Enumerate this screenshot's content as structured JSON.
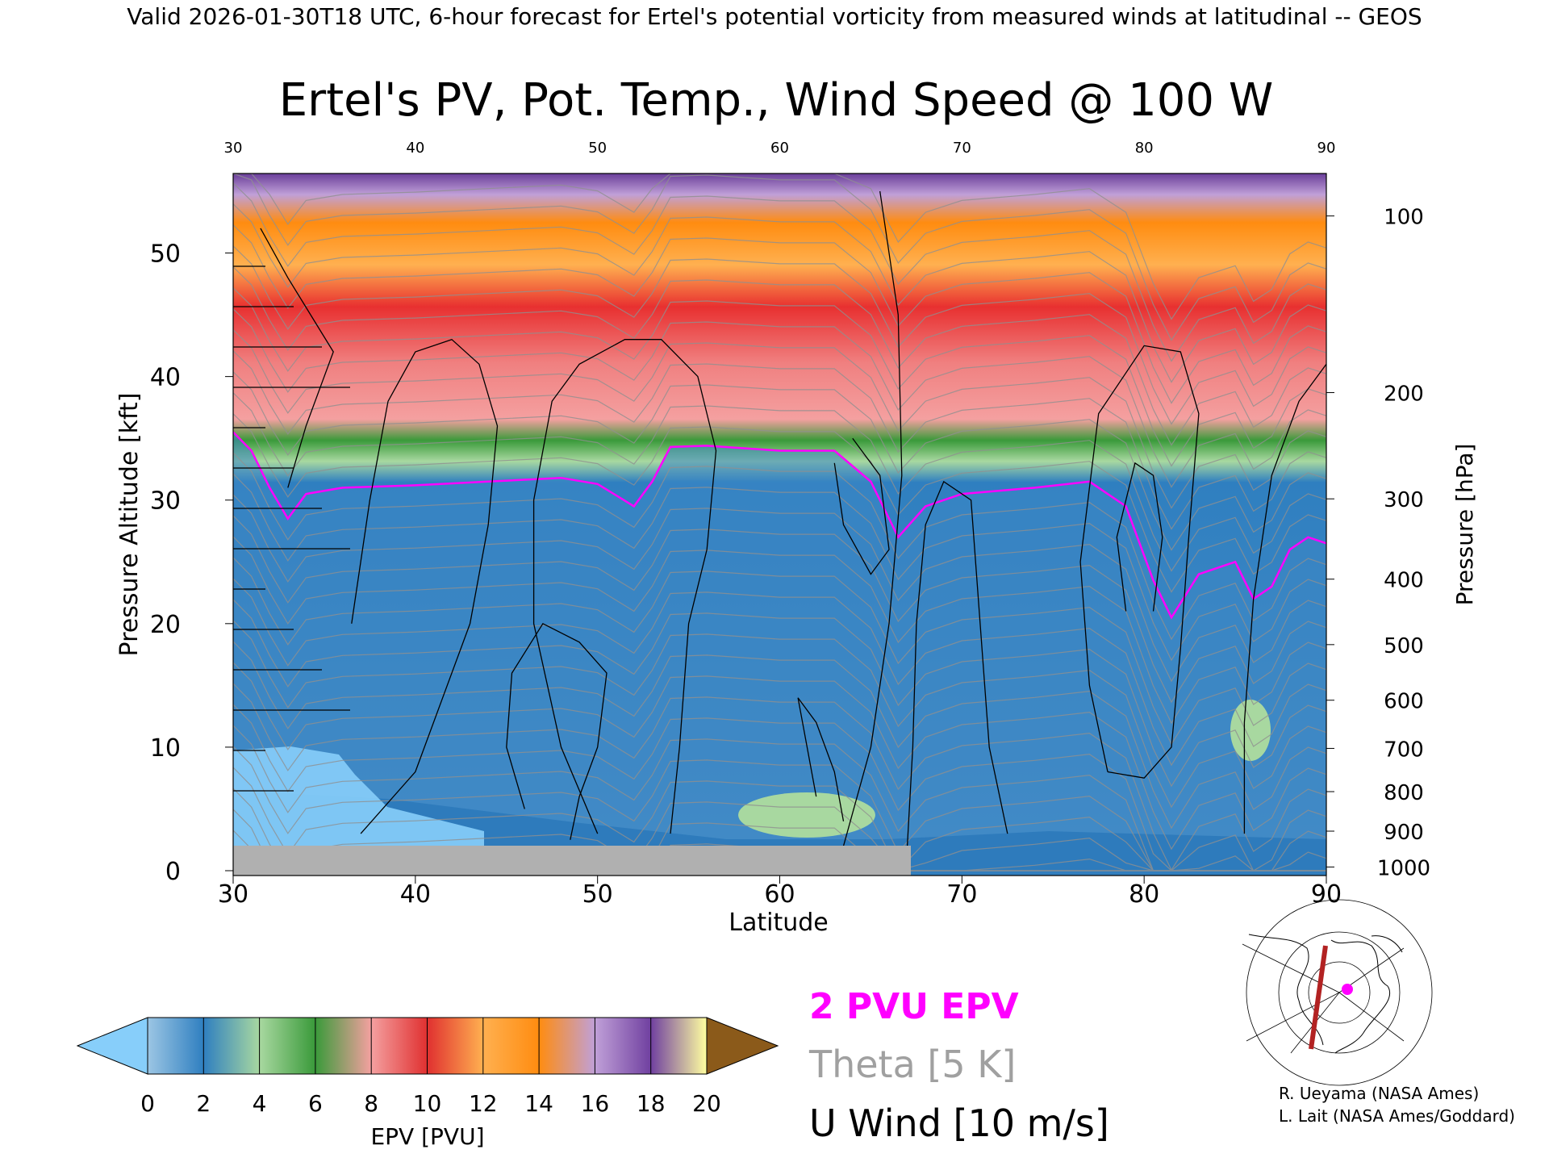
{
  "header": "Valid 2026-01-30T18 UTC, 6-hour forecast for Ertel's potential vorticity from measured winds at latitudinal -- GEOS",
  "chart_data": {
    "type": "heatmap",
    "title": "Ertel's PV, Pot. Temp., Wind Speed @ 100 W",
    "xlabel": "Latitude",
    "ylabel": "Pressure Altitude [kft]",
    "ylabel_right": "Pressure [hPa]",
    "xlim": [
      30,
      90
    ],
    "ylim": [
      0,
      55
    ],
    "x_ticks": [
      "30",
      "40",
      "50",
      "60",
      "70",
      "80",
      "90"
    ],
    "x_ticks_top": [
      "30",
      "40",
      "50",
      "60",
      "70",
      "80",
      "90"
    ],
    "y_ticks": [
      "0",
      "10",
      "20",
      "30",
      "40",
      "50"
    ],
    "pressure_ticks": [
      {
        "label": "100",
        "kft": 53
      },
      {
        "label": "200",
        "kft": 38.7
      },
      {
        "label": "300",
        "kft": 30.1
      },
      {
        "label": "400",
        "kft": 23.6
      },
      {
        "label": "500",
        "kft": 18.3
      },
      {
        "label": "600",
        "kft": 13.8
      },
      {
        "label": "700",
        "kft": 9.9
      },
      {
        "label": "800",
        "kft": 6.4
      },
      {
        "label": "900",
        "kft": 3.2
      },
      {
        "label": "1000",
        "kft": 0.3
      }
    ],
    "tropopause_2pvu": [
      {
        "lat": 30,
        "kft": 35.5
      },
      {
        "lat": 31,
        "kft": 34
      },
      {
        "lat": 32,
        "kft": 31
      },
      {
        "lat": 33,
        "kft": 28.5
      },
      {
        "lat": 34,
        "kft": 30.5
      },
      {
        "lat": 36,
        "kft": 31
      },
      {
        "lat": 40,
        "kft": 31.2
      },
      {
        "lat": 44,
        "kft": 31.5
      },
      {
        "lat": 48,
        "kft": 31.8
      },
      {
        "lat": 50,
        "kft": 31.3
      },
      {
        "lat": 52,
        "kft": 29.5
      },
      {
        "lat": 53,
        "kft": 31.5
      },
      {
        "lat": 54,
        "kft": 34.3
      },
      {
        "lat": 56,
        "kft": 34.4
      },
      {
        "lat": 60,
        "kft": 34
      },
      {
        "lat": 63,
        "kft": 34
      },
      {
        "lat": 65,
        "kft": 31.5
      },
      {
        "lat": 66.5,
        "kft": 27
      },
      {
        "lat": 68,
        "kft": 29.5
      },
      {
        "lat": 70,
        "kft": 30.5
      },
      {
        "lat": 74,
        "kft": 31
      },
      {
        "lat": 77,
        "kft": 31.5
      },
      {
        "lat": 79,
        "kft": 29.5
      },
      {
        "lat": 80.5,
        "kft": 23.5
      },
      {
        "lat": 81.5,
        "kft": 20.5
      },
      {
        "lat": 83,
        "kft": 24
      },
      {
        "lat": 85,
        "kft": 25
      },
      {
        "lat": 86,
        "kft": 22
      },
      {
        "lat": 87,
        "kft": 23
      },
      {
        "lat": 88,
        "kft": 26
      },
      {
        "lat": 89,
        "kft": 27
      },
      {
        "lat": 90,
        "kft": 26.5
      }
    ],
    "wind_10ms_contours": [
      [
        {
          "lat": 31.5,
          "kft": 52
        },
        {
          "lat": 33,
          "kft": 48
        },
        {
          "lat": 35.5,
          "kft": 42
        },
        {
          "lat": 34,
          "kft": 36
        },
        {
          "lat": 33,
          "kft": 31
        }
      ],
      [
        {
          "lat": 36.5,
          "kft": 20
        },
        {
          "lat": 37.5,
          "kft": 30
        },
        {
          "lat": 38.5,
          "kft": 38
        },
        {
          "lat": 40,
          "kft": 42
        },
        {
          "lat": 42,
          "kft": 43
        },
        {
          "lat": 43.5,
          "kft": 41
        },
        {
          "lat": 44.5,
          "kft": 36
        },
        {
          "lat": 44,
          "kft": 28
        },
        {
          "lat": 43,
          "kft": 20
        },
        {
          "lat": 40,
          "kft": 8
        },
        {
          "lat": 37,
          "kft": 3
        }
      ],
      [
        {
          "lat": 46,
          "kft": 5
        },
        {
          "lat": 45,
          "kft": 10
        },
        {
          "lat": 45.3,
          "kft": 16
        },
        {
          "lat": 47,
          "kft": 20
        },
        {
          "lat": 49,
          "kft": 18.5
        },
        {
          "lat": 50.5,
          "kft": 16
        },
        {
          "lat": 50,
          "kft": 10
        },
        {
          "lat": 49,
          "kft": 6
        },
        {
          "lat": 48.5,
          "kft": 2.5
        }
      ],
      [
        {
          "lat": 50,
          "kft": 3
        },
        {
          "lat": 48,
          "kft": 10
        },
        {
          "lat": 46.5,
          "kft": 20
        },
        {
          "lat": 46.5,
          "kft": 30
        },
        {
          "lat": 47.5,
          "kft": 38
        },
        {
          "lat": 49,
          "kft": 41
        },
        {
          "lat": 51.5,
          "kft": 43
        },
        {
          "lat": 53.5,
          "kft": 43
        },
        {
          "lat": 55.5,
          "kft": 40
        },
        {
          "lat": 56.5,
          "kft": 34
        },
        {
          "lat": 56,
          "kft": 26
        },
        {
          "lat": 55,
          "kft": 20
        },
        {
          "lat": 54.5,
          "kft": 10
        },
        {
          "lat": 54,
          "kft": 3
        }
      ],
      [
        {
          "lat": 62,
          "kft": 6
        },
        {
          "lat": 61.5,
          "kft": 10
        },
        {
          "lat": 61,
          "kft": 14
        },
        {
          "lat": 62,
          "kft": 12
        },
        {
          "lat": 63,
          "kft": 8
        },
        {
          "lat": 63.5,
          "kft": 4
        }
      ],
      [
        {
          "lat": 63.5,
          "kft": 2
        },
        {
          "lat": 65,
          "kft": 10
        },
        {
          "lat": 66,
          "kft": 20
        },
        {
          "lat": 66.7,
          "kft": 32
        },
        {
          "lat": 66.5,
          "kft": 45
        },
        {
          "lat": 65.5,
          "kft": 55
        }
      ],
      [
        {
          "lat": 63,
          "kft": 33
        },
        {
          "lat": 63.5,
          "kft": 28
        },
        {
          "lat": 65,
          "kft": 24
        },
        {
          "lat": 66,
          "kft": 26
        },
        {
          "lat": 65.5,
          "kft": 32
        },
        {
          "lat": 64,
          "kft": 35
        }
      ],
      [
        {
          "lat": 67,
          "kft": 2
        },
        {
          "lat": 67.3,
          "kft": 10
        },
        {
          "lat": 67.5,
          "kft": 20
        },
        {
          "lat": 68,
          "kft": 28
        },
        {
          "lat": 69,
          "kft": 31.5
        },
        {
          "lat": 70.5,
          "kft": 30
        },
        {
          "lat": 71,
          "kft": 20
        },
        {
          "lat": 71.5,
          "kft": 10
        },
        {
          "lat": 72.5,
          "kft": 3
        }
      ],
      [
        {
          "lat": 78,
          "kft": 8
        },
        {
          "lat": 77,
          "kft": 15
        },
        {
          "lat": 76.5,
          "kft": 25
        },
        {
          "lat": 77.5,
          "kft": 37
        },
        {
          "lat": 80,
          "kft": 42.5
        },
        {
          "lat": 82,
          "kft": 42
        },
        {
          "lat": 83,
          "kft": 37
        },
        {
          "lat": 82.5,
          "kft": 28
        },
        {
          "lat": 82,
          "kft": 18
        },
        {
          "lat": 81.5,
          "kft": 10
        },
        {
          "lat": 80,
          "kft": 7.5
        },
        {
          "lat": 78,
          "kft": 8
        }
      ],
      [
        {
          "lat": 79,
          "kft": 21
        },
        {
          "lat": 78.5,
          "kft": 27
        },
        {
          "lat": 79.5,
          "kft": 33
        },
        {
          "lat": 80.5,
          "kft": 32
        },
        {
          "lat": 81,
          "kft": 27
        },
        {
          "lat": 80.5,
          "kft": 21
        }
      ],
      [
        {
          "lat": 85.5,
          "kft": 3
        },
        {
          "lat": 85.5,
          "kft": 12
        },
        {
          "lat": 86,
          "kft": 22
        },
        {
          "lat": 87,
          "kft": 32
        },
        {
          "lat": 88.5,
          "kft": 38
        },
        {
          "lat": 90,
          "kft": 41
        }
      ]
    ],
    "colorbar": {
      "label": "EPV [PVU]",
      "ticks": [
        "0",
        "2",
        "4",
        "6",
        "8",
        "10",
        "12",
        "14",
        "16",
        "18",
        "20"
      ],
      "colors": [
        "#87cefa",
        "#2f7fc0",
        "#a8d8a0",
        "#3a9a3a",
        "#f4a0a0",
        "#e03030",
        "#ffb050",
        "#ff8c10",
        "#b090d0",
        "#7040a0",
        "#ffffa0",
        "#8b5a1a"
      ]
    }
  },
  "legend": {
    "epv": "2 PVU EPV",
    "theta": "Theta [5 K]",
    "wind": "U Wind [10 m/s]"
  },
  "map_inset": {
    "section_longitude": "100 W"
  },
  "credits": {
    "line1": "R. Ueyama (NASA Ames)",
    "line2": "L. Lait (NASA Ames/Goddard)"
  }
}
